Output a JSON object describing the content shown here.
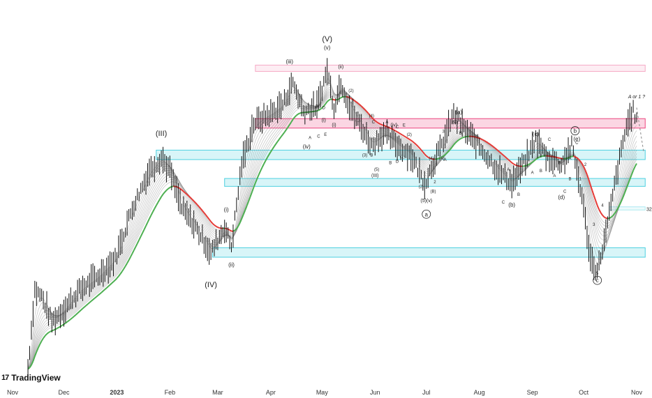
{
  "chart_data": {
    "type": "line",
    "subtype": "candlestick-with-moving-average-ribbon",
    "title": "",
    "xlabel": "",
    "ylabel": "",
    "x_ticks": [
      {
        "label": "Nov",
        "x": "2022-11-01"
      },
      {
        "label": "Dec",
        "x": "2022-12-01"
      },
      {
        "label": "2023",
        "x": "2023-01-01",
        "bold": true
      },
      {
        "label": "Feb",
        "x": "2023-02-01"
      },
      {
        "label": "Mar",
        "x": "2023-03-01"
      },
      {
        "label": "Apr",
        "x": "2023-04-01"
      },
      {
        "label": "May",
        "x": "2023-05-01"
      },
      {
        "label": "Jun",
        "x": "2023-06-01"
      },
      {
        "label": "Jul",
        "x": "2023-07-01"
      },
      {
        "label": "Aug",
        "x": "2023-08-01"
      },
      {
        "label": "Sep",
        "x": "2023-09-01"
      },
      {
        "label": "Oct",
        "x": "2023-10-01"
      },
      {
        "label": "Nov",
        "x": "2023-11-01"
      }
    ],
    "price_path": [
      [
        "2022-11-10",
        5
      ],
      [
        "2022-11-14",
        30
      ],
      [
        "2022-11-18",
        28
      ],
      [
        "2022-11-24",
        20
      ],
      [
        "2022-12-01",
        24
      ],
      [
        "2022-12-10",
        30
      ],
      [
        "2022-12-20",
        34
      ],
      [
        "2022-12-31",
        40
      ],
      [
        "2023-01-10",
        56
      ],
      [
        "2023-01-20",
        68
      ],
      [
        "2023-01-27",
        72
      ],
      [
        "2023-02-01",
        68
      ],
      [
        "2023-02-08",
        56
      ],
      [
        "2023-02-15",
        51
      ],
      [
        "2023-02-25",
        42
      ],
      [
        "2023-03-01",
        46
      ],
      [
        "2023-03-05",
        50
      ],
      [
        "2023-03-09",
        44
      ],
      [
        "2023-03-15",
        70
      ],
      [
        "2023-03-22",
        83
      ],
      [
        "2023-04-01",
        86
      ],
      [
        "2023-04-08",
        89
      ],
      [
        "2023-04-14",
        96
      ],
      [
        "2023-04-20",
        87
      ],
      [
        "2023-04-28",
        88
      ],
      [
        "2023-05-04",
        100
      ],
      [
        "2023-05-08",
        88
      ],
      [
        "2023-05-12",
        96
      ],
      [
        "2023-05-18",
        87
      ],
      [
        "2023-05-24",
        82
      ],
      [
        "2023-05-30",
        76
      ],
      [
        "2023-06-06",
        80
      ],
      [
        "2023-06-14",
        76
      ],
      [
        "2023-06-22",
        73
      ],
      [
        "2023-06-30",
        64
      ],
      [
        "2023-07-04",
        69
      ],
      [
        "2023-07-10",
        76
      ],
      [
        "2023-07-17",
        86
      ],
      [
        "2023-07-25",
        80
      ],
      [
        "2023-08-02",
        75
      ],
      [
        "2023-08-12",
        68
      ],
      [
        "2023-08-20",
        64
      ],
      [
        "2023-08-28",
        71
      ],
      [
        "2023-09-03",
        78
      ],
      [
        "2023-09-10",
        72
      ],
      [
        "2023-09-18",
        70
      ],
      [
        "2023-09-24",
        76
      ],
      [
        "2023-09-30",
        60
      ],
      [
        "2023-10-05",
        40
      ],
      [
        "2023-10-09",
        36
      ],
      [
        "2023-10-14",
        48
      ],
      [
        "2023-10-20",
        66
      ],
      [
        "2023-10-26",
        82
      ],
      [
        "2023-10-30",
        87
      ],
      [
        "2023-11-01",
        84
      ]
    ],
    "y_range": [
      0,
      110
    ],
    "colors": {
      "ribbon_up": "#4caf50",
      "ribbon_down": "#e53935",
      "ribbon_gray": "#888888",
      "candles": "#111111",
      "zone_red": "#e91e63",
      "zone_cyan": "#26c6da"
    },
    "zones": [
      {
        "color": "red",
        "from": "2023-03-23",
        "to": "2023-11-06",
        "y_low": 99.5,
        "y_high": 101.5,
        "faint": true
      },
      {
        "color": "red",
        "from": "2023-03-23",
        "to": "2023-11-06",
        "y_low": 81.5,
        "y_high": 84.5
      },
      {
        "color": "cyan",
        "from": "2023-01-24",
        "to": "2023-11-06",
        "y_low": 71.5,
        "y_high": 74.5
      },
      {
        "color": "cyan",
        "from": "2023-03-05",
        "to": "2023-11-06",
        "y_low": 63.0,
        "y_high": 65.5
      },
      {
        "color": "cyan",
        "from": "2023-02-26",
        "to": "2023-11-06",
        "y_low": 40.5,
        "y_high": 43.5
      },
      {
        "color": "cyan",
        "from": "2023-10-16",
        "to": "2023-11-06",
        "y_low": 55.5,
        "y_high": 56.5,
        "faint": true
      }
    ],
    "annotations": [
      {
        "text": "(III)",
        "x": "2023-01-27",
        "y": 79,
        "size": 11
      },
      {
        "text": "(IV)",
        "x": "2023-02-25",
        "y": 31,
        "size": 11
      },
      {
        "text": "(V)",
        "x": "2023-05-04",
        "y": 109,
        "size": 11
      },
      {
        "text": "(v)",
        "x": "2023-05-04",
        "y": 106.5,
        "size": 8
      },
      {
        "text": "(iii)",
        "x": "2023-04-12",
        "y": 102,
        "size": 8
      },
      {
        "text": "(i)",
        "x": "2023-03-06",
        "y": 55,
        "size": 8
      },
      {
        "text": "(ii)",
        "x": "2023-03-09",
        "y": 37.5,
        "size": 8
      },
      {
        "text": "(iv)",
        "x": "2023-04-22",
        "y": 75,
        "size": 8
      },
      {
        "text": "(ii)",
        "x": "2023-05-12",
        "y": 100.5,
        "size": 7
      },
      {
        "text": "(i)",
        "x": "2023-05-08",
        "y": 82,
        "size": 7
      },
      {
        "text": "(a)",
        "x": "2023-07-20",
        "y": 86,
        "size": 8
      },
      {
        "text": "(b)",
        "x": "2023-08-20",
        "y": 56.5,
        "size": 8
      },
      {
        "text": "(c)",
        "x": "2023-09-03",
        "y": 79,
        "size": 8
      },
      {
        "text": "(d)",
        "x": "2023-09-18",
        "y": 59,
        "size": 8
      },
      {
        "text": "(e)",
        "x": "2023-09-27",
        "y": 77.5,
        "size": 8
      },
      {
        "text": "(iv)",
        "x": "2023-06-12",
        "y": 82,
        "size": 7
      },
      {
        "text": "(III)",
        "x": "2023-06-01",
        "y": 66,
        "size": 7
      },
      {
        "text": "(5)(v)",
        "x": "2023-07-01",
        "y": 58,
        "size": 7
      },
      {
        "text": "A or 1 ?",
        "x": "2023-11-01",
        "y": 91,
        "size": 7,
        "italic": true
      },
      {
        "text": "(C)",
        "x": "2023-07-18",
        "y": 83,
        "size": 6
      },
      {
        "text": "(A)",
        "x": "2023-07-10",
        "y": 71.5,
        "size": 6
      },
      {
        "text": "(B)",
        "x": "2023-07-05",
        "y": 61,
        "size": 6
      },
      {
        "text": "(1)",
        "x": "2023-06-17",
        "y": 72,
        "size": 6
      },
      {
        "text": "(2)",
        "x": "2023-06-21",
        "y": 79,
        "size": 6
      },
      {
        "text": "(2)",
        "x": "2023-06-28",
        "y": 62.5,
        "size": 6
      },
      {
        "text": "(3)",
        "x": "2023-05-26",
        "y": 72.5,
        "size": 6
      },
      {
        "text": "(4)",
        "x": "2023-07-04",
        "y": 71.5,
        "size": 6
      },
      {
        "text": "(5)",
        "x": "2023-06-02",
        "y": 68,
        "size": 6
      },
      {
        "text": "(4)",
        "x": "2023-05-30",
        "y": 85,
        "size": 6
      },
      {
        "text": "(2)",
        "x": "2023-05-18",
        "y": 93,
        "size": 6
      },
      {
        "text": "(1)",
        "x": "2023-05-22",
        "y": 83.5,
        "size": 6
      },
      {
        "text": "(i)",
        "x": "2023-05-02",
        "y": 83.5,
        "size": 7
      },
      {
        "text": "A",
        "x": "2023-06-08",
        "y": 83,
        "size": 6
      },
      {
        "text": "B",
        "x": "2023-06-10",
        "y": 70,
        "size": 6
      },
      {
        "text": "C",
        "x": "2023-06-14",
        "y": 81.5,
        "size": 6
      },
      {
        "text": "D",
        "x": "2023-06-14",
        "y": 70.5,
        "size": 6
      },
      {
        "text": "E",
        "x": "2023-06-18",
        "y": 82,
        "size": 6
      },
      {
        "text": "A",
        "x": "2023-04-24",
        "y": 78,
        "size": 6
      },
      {
        "text": "B",
        "x": "2023-04-28",
        "y": 88,
        "size": 6
      },
      {
        "text": "C",
        "x": "2023-04-29",
        "y": 78.5,
        "size": 6
      },
      {
        "text": "D",
        "x": "2023-05-02",
        "y": 87.5,
        "size": 6
      },
      {
        "text": "E",
        "x": "2023-05-03",
        "y": 79,
        "size": 6
      },
      {
        "text": "B",
        "x": "2023-05-30",
        "y": 72.5,
        "size": 6
      },
      {
        "text": "C",
        "x": "2023-05-31",
        "y": 83,
        "size": 6
      },
      {
        "text": "A",
        "x": "2023-07-12",
        "y": 71,
        "size": 6
      },
      {
        "text": "B",
        "x": "2023-07-21",
        "y": 79.5,
        "size": 6
      },
      {
        "text": "A",
        "x": "2023-08-18",
        "y": 68,
        "size": 6
      },
      {
        "text": "B",
        "x": "2023-08-24",
        "y": 60,
        "size": 6
      },
      {
        "text": "C",
        "x": "2023-08-15",
        "y": 57.5,
        "size": 6
      },
      {
        "text": "A",
        "x": "2023-09-01",
        "y": 67,
        "size": 6
      },
      {
        "text": "B",
        "x": "2023-09-06",
        "y": 67.5,
        "size": 6
      },
      {
        "text": "C",
        "x": "2023-09-11",
        "y": 77.5,
        "size": 6
      },
      {
        "text": "A",
        "x": "2023-09-14",
        "y": 66,
        "size": 6
      },
      {
        "text": "B",
        "x": "2023-09-17",
        "y": 70,
        "size": 6
      },
      {
        "text": "C",
        "x": "2023-09-20",
        "y": 61,
        "size": 6
      },
      {
        "text": "A",
        "x": "2023-09-23",
        "y": 71.5,
        "size": 6
      },
      {
        "text": "B",
        "x": "2023-09-23",
        "y": 65,
        "size": 6
      },
      {
        "text": "C",
        "x": "2023-09-27",
        "y": 76.5,
        "size": 6
      },
      {
        "text": "1",
        "x": "2023-09-29",
        "y": 65,
        "size": 6
      },
      {
        "text": "2",
        "x": "2023-10-02",
        "y": 69.5,
        "size": 6
      },
      {
        "text": "3",
        "x": "2023-10-07",
        "y": 50.5,
        "size": 6
      },
      {
        "text": "4",
        "x": "2023-10-12",
        "y": 56.5,
        "size": 6
      },
      {
        "text": "5",
        "x": "2023-10-09",
        "y": 35,
        "size": 6
      },
      {
        "text": "3",
        "x": "2023-07-11",
        "y": 80,
        "size": 6
      },
      {
        "text": "5",
        "x": "2023-07-17",
        "y": 83,
        "size": 6
      },
      {
        "text": "2",
        "x": "2023-07-06",
        "y": 64,
        "size": 6
      },
      {
        "text": "a",
        "x": "2023-07-01",
        "y": 53.5,
        "size": 8,
        "circled": true
      },
      {
        "text": "b",
        "x": "2023-09-26",
        "y": 80,
        "size": 8,
        "circled": true
      },
      {
        "text": "c",
        "x": "2023-10-09",
        "y": 32.5,
        "size": 8,
        "circled": true
      }
    ],
    "side_value": "32"
  },
  "branding": {
    "logo_mark": "17",
    "logo_text": "TradingView"
  }
}
